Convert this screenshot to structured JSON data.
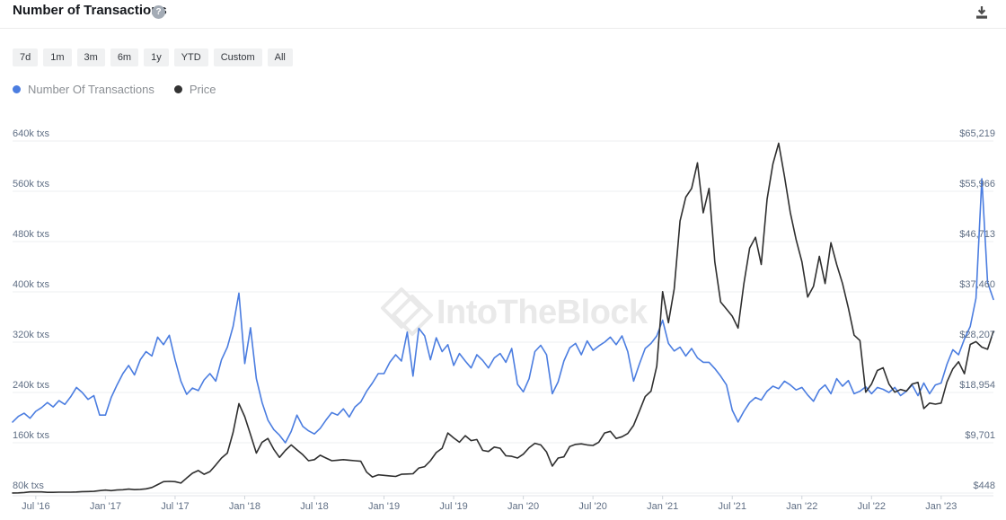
{
  "header": {
    "title": "Number of Transactions",
    "help_glyph": "?"
  },
  "toolbar": {
    "ranges": [
      "7d",
      "1m",
      "3m",
      "6m",
      "1y",
      "YTD",
      "Custom",
      "All"
    ]
  },
  "legend": [
    {
      "label": "Number Of Transactions",
      "color": "#4b7de0"
    },
    {
      "label": "Price",
      "color": "#333333"
    }
  ],
  "watermark": {
    "text": "IntoTheBlock"
  },
  "colors": {
    "accent_blue": "#4b7de0",
    "price_dark": "#2f2f2f",
    "grid": "#edeff2",
    "axis_line": "#e3e6ea",
    "tick_mark": "#cfd4da",
    "axis_label": "#5f6e84",
    "watermark": "#e9e9e9"
  },
  "chart_data": {
    "type": "line",
    "title": "Number of Transactions",
    "x_unit": "semi-monthly estimates, May 2016 - May 2023",
    "grid": true,
    "legend_position": "top-left",
    "x_ticks": [
      {
        "index": 4,
        "label": "Jul '16"
      },
      {
        "index": 16,
        "label": "Jan '17"
      },
      {
        "index": 28,
        "label": "Jul '17"
      },
      {
        "index": 40,
        "label": "Jan '18"
      },
      {
        "index": 52,
        "label": "Jul '18"
      },
      {
        "index": 64,
        "label": "Jan '19"
      },
      {
        "index": 76,
        "label": "Jul '19"
      },
      {
        "index": 88,
        "label": "Jan '20"
      },
      {
        "index": 100,
        "label": "Jul '20"
      },
      {
        "index": 112,
        "label": "Jan '21"
      },
      {
        "index": 124,
        "label": "Jul '21"
      },
      {
        "index": 136,
        "label": "Jan '22"
      },
      {
        "index": 148,
        "label": "Jul '22"
      },
      {
        "index": 160,
        "label": "Jan '23"
      }
    ],
    "left_axis": {
      "unit": "k txs",
      "min": 80,
      "max": 640,
      "tick_values": [
        640,
        560,
        480,
        400,
        320,
        240,
        160,
        80
      ],
      "labels": [
        "640k txs",
        "560k txs",
        "480k txs",
        "400k txs",
        "320k txs",
        "240k txs",
        "160k txs",
        "80k txs"
      ]
    },
    "right_axis": {
      "unit": "USD",
      "min": 448,
      "max": 65219,
      "tick_values": [
        65219,
        55966,
        46713,
        37460,
        28207,
        18954,
        9701,
        448
      ],
      "labels": [
        "$65,219",
        "$55,966",
        "$46,713",
        "$37,460",
        "$28,207",
        "$18,954",
        "$9,701",
        "$448"
      ]
    },
    "series": [
      {
        "key": "transactions",
        "name": "Number Of Transactions",
        "axis": "left",
        "color": "#4b7de0",
        "unit": "k txs",
        "values": [
          193,
          202,
          207,
          199,
          210,
          216,
          224,
          217,
          227,
          221,
          233,
          248,
          240,
          229,
          235,
          204,
          204,
          232,
          252,
          270,
          283,
          268,
          292,
          305,
          298,
          328,
          316,
          331,
          292,
          258,
          237,
          247,
          243,
          260,
          270,
          258,
          292,
          312,
          345,
          398,
          286,
          343,
          262,
          224,
          196,
          181,
          172,
          160,
          178,
          204,
          186,
          179,
          174,
          183,
          196,
          208,
          204,
          214,
          201,
          217,
          225,
          242,
          255,
          270,
          270,
          288,
          300,
          290,
          336,
          266,
          342,
          330,
          292,
          327,
          305,
          316,
          283,
          302,
          290,
          279,
          300,
          291,
          279,
          295,
          302,
          288,
          310,
          253,
          241,
          262,
          305,
          315,
          300,
          238,
          257,
          290,
          311,
          318,
          300,
          322,
          307,
          314,
          320,
          328,
          316,
          330,
          305,
          258,
          285,
          310,
          318,
          330,
          355,
          318,
          306,
          312,
          298,
          310,
          295,
          288,
          288,
          278,
          266,
          252,
          212,
          193,
          210,
          224,
          232,
          228,
          242,
          250,
          246,
          258,
          252,
          244,
          248,
          236,
          226,
          244,
          252,
          238,
          262,
          250,
          259,
          238,
          242,
          249,
          238,
          248,
          245,
          240,
          248,
          235,
          242,
          252,
          235,
          255,
          238,
          252,
          255,
          285,
          308,
          300,
          325,
          345,
          390,
          580,
          415,
          388
        ]
      },
      {
        "key": "price",
        "name": "Price",
        "axis": "right",
        "color": "#2f2f2f",
        "unit": "USD",
        "values": [
          460,
          475,
          540,
          660,
          660,
          655,
          575,
          580,
          605,
          610,
          620,
          640,
          710,
          735,
          770,
          900,
          1000,
          895,
          1010,
          1060,
          1180,
          1080,
          1130,
          1220,
          1480,
          2000,
          2550,
          2600,
          2550,
          2280,
          3200,
          4100,
          4600,
          3900,
          4400,
          5600,
          6900,
          7800,
          11600,
          16900,
          14500,
          11200,
          7800,
          9800,
          10500,
          8500,
          7000,
          8300,
          9300,
          8400,
          7500,
          6400,
          6600,
          7400,
          6900,
          6400,
          6500,
          6600,
          6500,
          6400,
          6300,
          4300,
          3400,
          3800,
          3700,
          3600,
          3500,
          3900,
          3950,
          4000,
          5050,
          5300,
          6400,
          7900,
          8700,
          11500,
          10600,
          9800,
          11000,
          10100,
          10300,
          8300,
          8100,
          8900,
          8700,
          7300,
          7200,
          6900,
          7600,
          8800,
          9600,
          9300,
          8000,
          5400,
          6900,
          7100,
          9000,
          9400,
          9500,
          9300,
          9200,
          9800,
          11500,
          11800,
          10500,
          10800,
          11400,
          12900,
          15500,
          18200,
          19200,
          23800,
          37500,
          31800,
          38000,
          50500,
          54900,
          56500,
          61200,
          52000,
          56500,
          43000,
          35600,
          34300,
          33000,
          30800,
          39000,
          45500,
          47500,
          42500,
          54500,
          61000,
          64800,
          58700,
          52100,
          47100,
          43000,
          36500,
          38500,
          44000,
          39000,
          46500,
          42500,
          39000,
          34500,
          29500,
          28500,
          19000,
          20500,
          23000,
          23500,
          20500,
          19000,
          19500,
          19200,
          20500,
          20800,
          16000,
          17000,
          16800,
          17000,
          20900,
          23300,
          24600,
          22400,
          27800,
          28300,
          27300,
          26900,
          30200
        ]
      }
    ]
  }
}
